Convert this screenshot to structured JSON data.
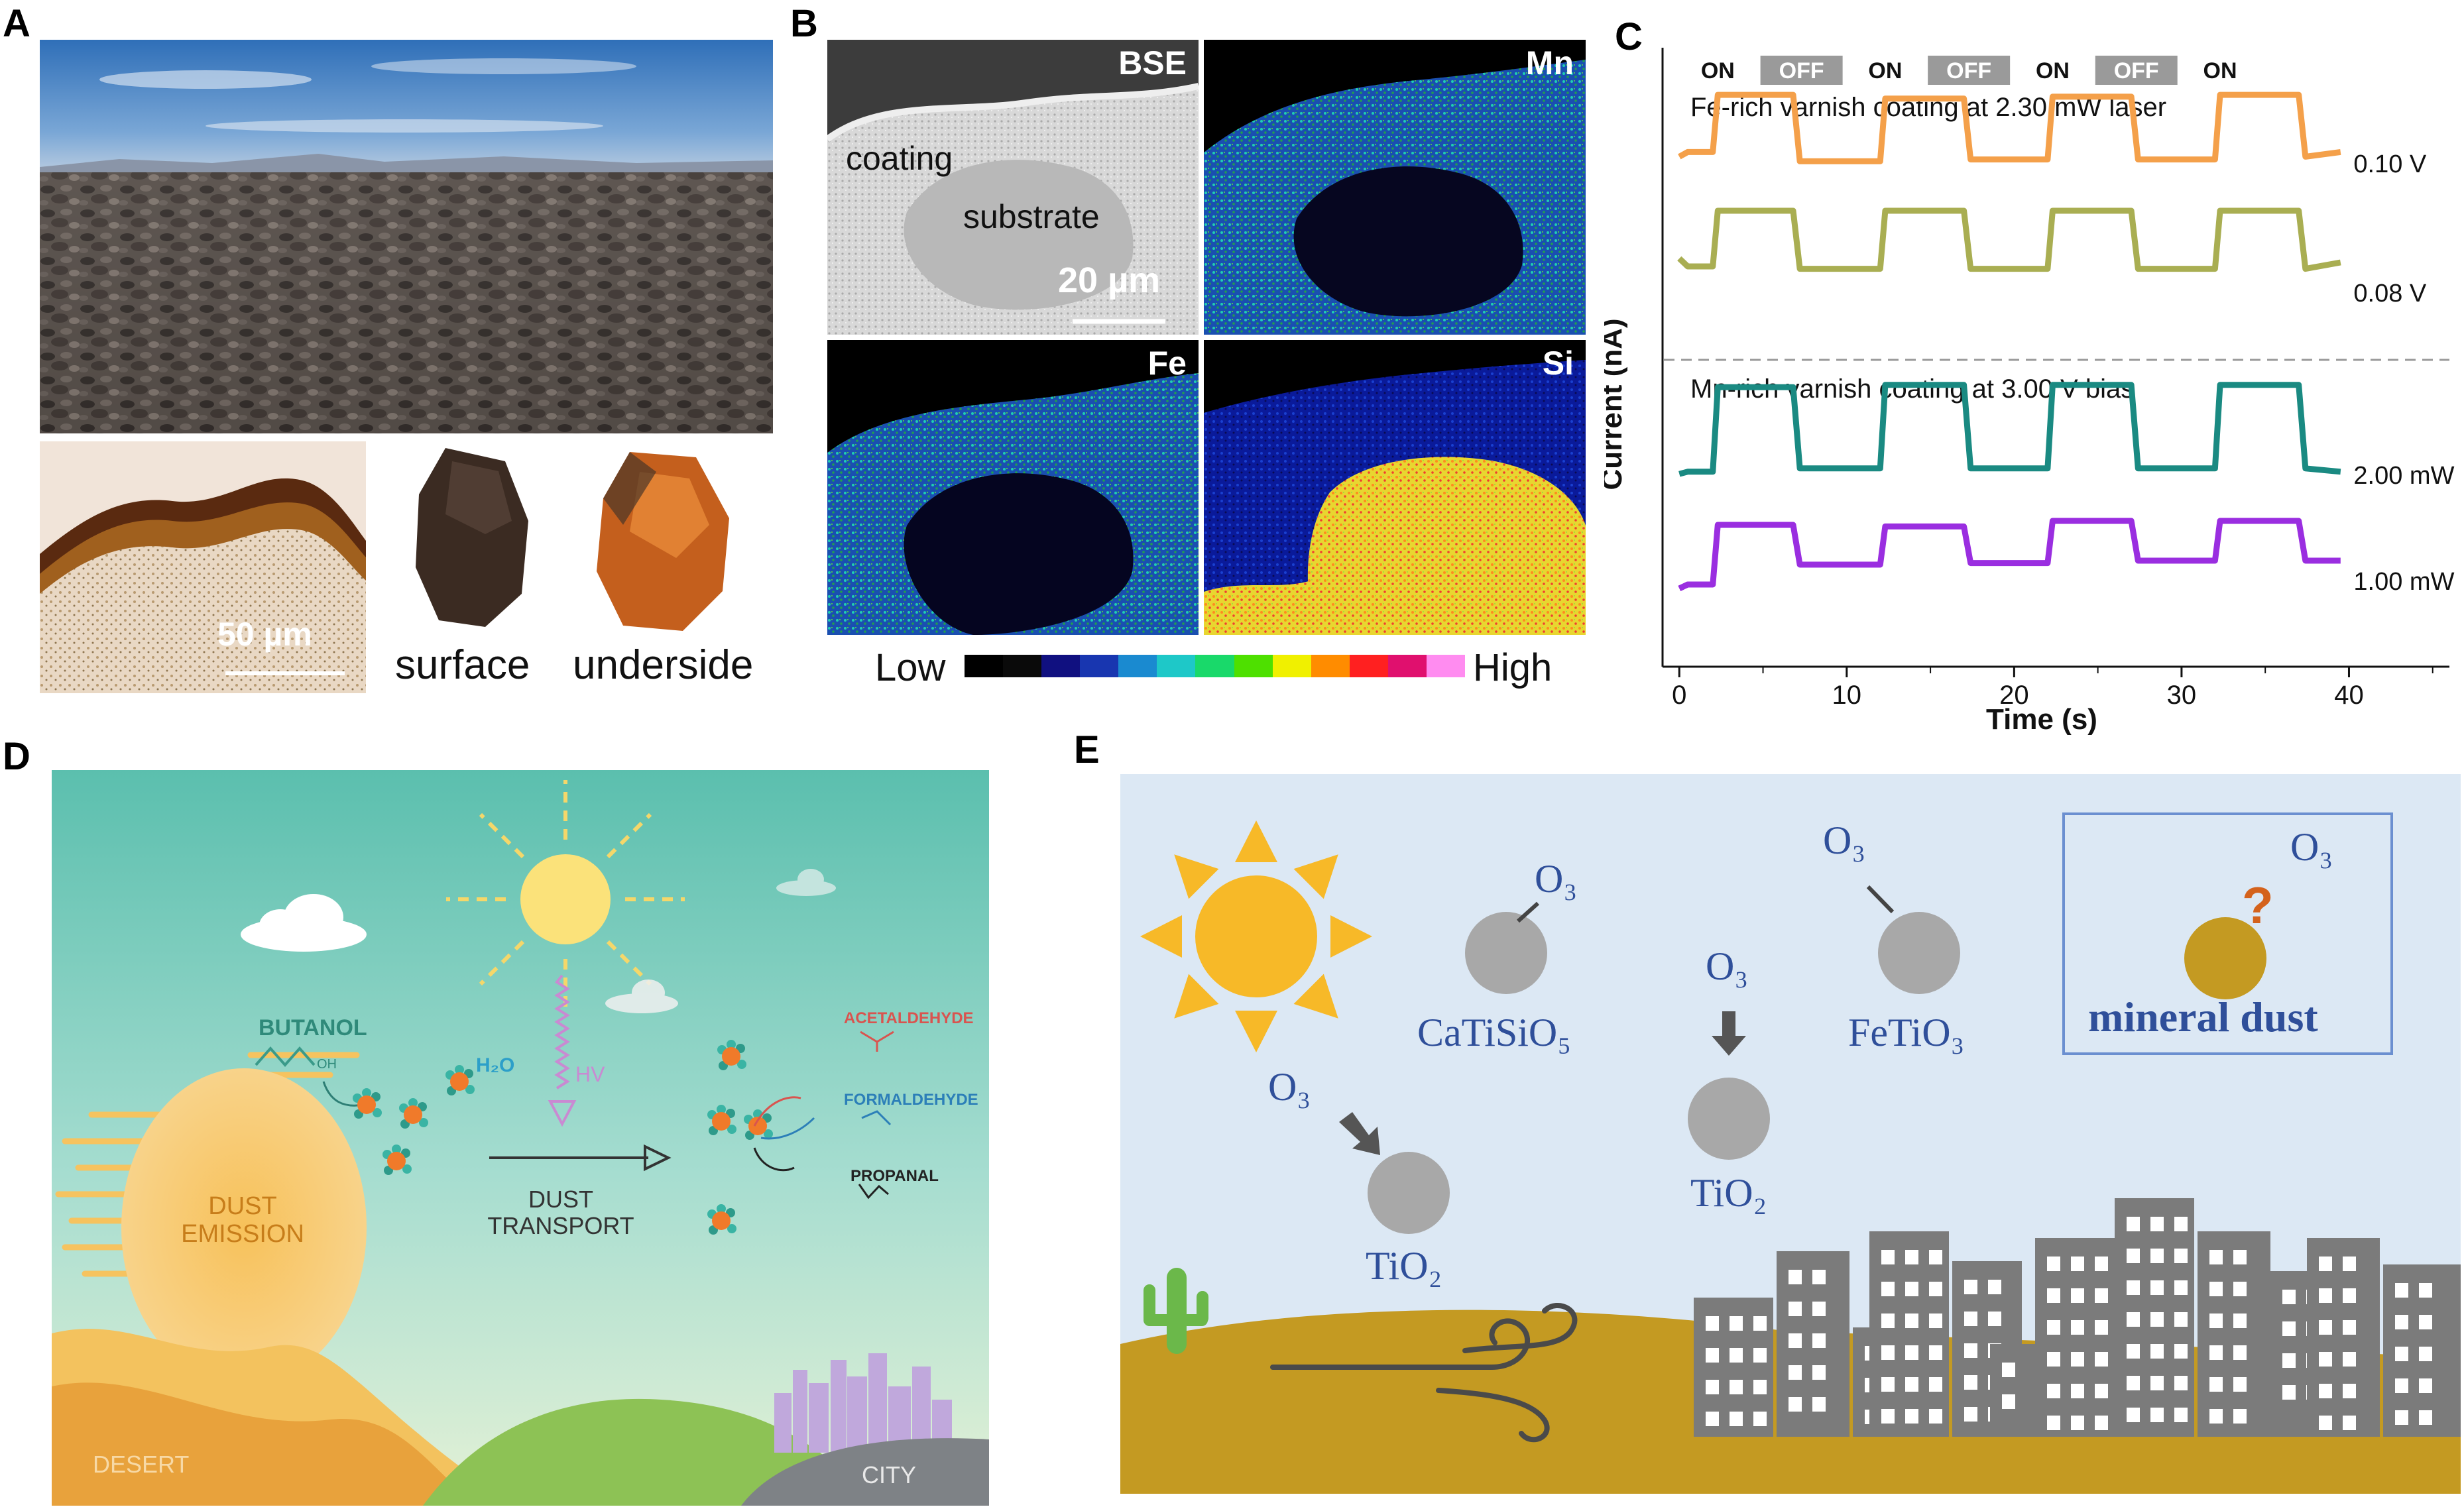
{
  "figure": {
    "panels": {
      "A": {
        "letter": "A",
        "scale_label": "50 µm",
        "rock_labels": [
          "surface",
          "underside"
        ]
      },
      "B": {
        "letter": "B",
        "maps": [
          {
            "label": "BSE",
            "palette": "greyscale"
          },
          {
            "label": "Mn",
            "palette": "mid"
          },
          {
            "label": "Fe",
            "palette": "mid"
          },
          {
            "label": "Si",
            "palette": "hot"
          }
        ],
        "bse_annotations": [
          "coating",
          "substrate"
        ],
        "scale_label": "20 µm",
        "colorbar": {
          "low": "Low",
          "high": "High",
          "colors": [
            "#000000",
            "#0a0a0a",
            "#101080",
            "#1836b0",
            "#1a8ad0",
            "#1ec8c8",
            "#19d96a",
            "#4ee000",
            "#f0f000",
            "#ff8c00",
            "#ff2020",
            "#e0106e",
            "#ff8cf0"
          ]
        }
      },
      "C": {
        "letter": "C",
        "state_labels": [
          "ON",
          "OFF",
          "ON",
          "OFF",
          "ON",
          "OFF",
          "ON"
        ],
        "group_labels": [
          "Fe-rich varnish coating at 2.30 mW laser",
          "Mn-rich varnish coating at 3.00 V bias"
        ],
        "chart_data": {
          "type": "line",
          "xlabel": "Time (s)",
          "ylabel": "Current (nA)",
          "xlim": [
            -1,
            46
          ],
          "xticks": [
            0,
            10,
            20,
            30,
            40
          ],
          "series": [
            {
              "name": "0.10 V",
              "color": "#f4a04a",
              "x": [
                0,
                0.5,
                2,
                2.3,
                6.8,
                7.2,
                12,
                12.3,
                17,
                17.4,
                22,
                22.3,
                27,
                27.4,
                32,
                32.3,
                37,
                37.4,
                39.5
              ],
              "y": [
                0.25,
                0.3,
                0.3,
                0.92,
                0.92,
                0.2,
                0.2,
                0.88,
                0.88,
                0.22,
                0.22,
                0.9,
                0.9,
                0.22,
                0.22,
                0.92,
                0.92,
                0.25,
                0.3
              ]
            },
            {
              "name": "0.08 V",
              "color": "#a9ae52",
              "x": [
                0,
                0.5,
                2,
                2.3,
                6.8,
                7.2,
                12,
                12.3,
                17,
                17.4,
                22,
                22.3,
                27,
                27.4,
                32,
                32.3,
                37,
                37.4,
                39.5
              ],
              "y": [
                0.25,
                0.15,
                0.15,
                0.85,
                0.85,
                0.12,
                0.12,
                0.85,
                0.85,
                0.12,
                0.12,
                0.85,
                0.85,
                0.12,
                0.12,
                0.85,
                0.85,
                0.12,
                0.2
              ]
            },
            {
              "name": "2.00 mW",
              "color": "#1a8a82",
              "x": [
                0,
                0.5,
                2,
                2.3,
                6.8,
                7.2,
                12,
                12.3,
                17,
                17.4,
                22,
                22.3,
                27,
                27.4,
                32,
                32.3,
                37,
                37.4,
                39.5
              ],
              "y": [
                0.1,
                0.12,
                0.12,
                0.88,
                0.88,
                0.15,
                0.15,
                0.9,
                0.9,
                0.15,
                0.15,
                0.9,
                0.9,
                0.15,
                0.15,
                0.9,
                0.9,
                0.15,
                0.12
              ]
            },
            {
              "name": "1.00 mW",
              "color": "#9a2ee0",
              "x": [
                0,
                0.5,
                2,
                2.3,
                6.8,
                7.2,
                12,
                12.3,
                17,
                17.4,
                22,
                22.3,
                27,
                27.4,
                32,
                32.3,
                37,
                37.4,
                39.5
              ],
              "y": [
                0.0,
                0.05,
                0.05,
                0.8,
                0.8,
                0.3,
                0.3,
                0.78,
                0.78,
                0.32,
                0.32,
                0.85,
                0.85,
                0.35,
                0.35,
                0.85,
                0.85,
                0.35,
                0.35
              ]
            }
          ]
        }
      },
      "D": {
        "letter": "D",
        "labels": {
          "butanol": "BUTANOL",
          "oh": "OH",
          "h2o": "H₂O",
          "hv": "HV",
          "dust_emission": [
            "DUST",
            "EMISSION"
          ],
          "dust_transport": [
            "DUST",
            "TRANSPORT"
          ],
          "acetaldehyde": "ACETALDEHYDE",
          "formaldehyde": "FORMALDEHYDE",
          "propanal": "PROPANAL",
          "desert": "DESERT",
          "city": "CITY"
        }
      },
      "E": {
        "letter": "E",
        "labels": {
          "o3": "O₃",
          "catisio5": "CaTiSiO₅",
          "fetio3": "FeTiO₃",
          "tio2": "TiO₂",
          "mineral_dust": "mineral dust",
          "question": "?"
        }
      }
    }
  }
}
